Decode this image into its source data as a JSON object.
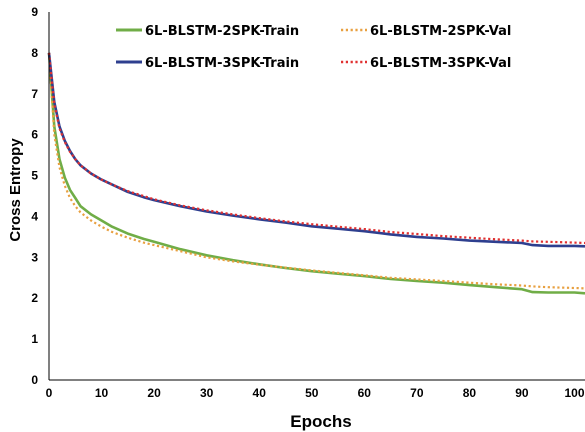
{
  "chart_data": {
    "type": "line",
    "xlabel": "Epochs",
    "ylabel": "Cross Entropy",
    "xlim": [
      0,
      102
    ],
    "ylim": [
      0,
      9
    ],
    "xticks": [
      0,
      10,
      20,
      30,
      40,
      50,
      60,
      70,
      80,
      90,
      100
    ],
    "yticks": [
      0,
      1,
      2,
      3,
      4,
      5,
      6,
      7,
      8,
      9
    ],
    "grid": false,
    "legend_position": "top",
    "x": [
      0,
      1,
      2,
      3,
      4,
      5,
      6,
      8,
      10,
      12,
      15,
      18,
      20,
      25,
      30,
      35,
      40,
      45,
      50,
      55,
      60,
      65,
      70,
      75,
      80,
      85,
      90,
      92,
      95,
      100,
      102
    ],
    "series": [
      {
        "name": "6L-BLSTM-2SPK-Train",
        "color": "#70ad47",
        "dash": "solid",
        "values": [
          8.0,
          6.2,
          5.4,
          4.95,
          4.65,
          4.45,
          4.25,
          4.05,
          3.9,
          3.75,
          3.58,
          3.45,
          3.38,
          3.2,
          3.05,
          2.93,
          2.83,
          2.74,
          2.66,
          2.6,
          2.54,
          2.47,
          2.42,
          2.38,
          2.32,
          2.27,
          2.22,
          2.15,
          2.14,
          2.14,
          2.12
        ]
      },
      {
        "name": "6L-BLSTM-2SPK-Val",
        "color": "#e8a040",
        "dash": "dotted",
        "values": [
          8.0,
          6.0,
          5.2,
          4.75,
          4.45,
          4.25,
          4.1,
          3.9,
          3.75,
          3.62,
          3.48,
          3.36,
          3.3,
          3.15,
          3.0,
          2.9,
          2.82,
          2.75,
          2.68,
          2.62,
          2.56,
          2.5,
          2.46,
          2.42,
          2.38,
          2.34,
          2.31,
          2.29,
          2.27,
          2.25,
          2.24
        ]
      },
      {
        "name": "6L-BLSTM-3SPK-Train",
        "color": "#2e3f8f",
        "dash": "solid",
        "values": [
          8.0,
          6.8,
          6.2,
          5.85,
          5.6,
          5.4,
          5.25,
          5.05,
          4.9,
          4.78,
          4.6,
          4.47,
          4.4,
          4.25,
          4.12,
          4.02,
          3.93,
          3.85,
          3.76,
          3.7,
          3.64,
          3.56,
          3.5,
          3.46,
          3.41,
          3.38,
          3.35,
          3.3,
          3.28,
          3.28,
          3.27
        ]
      },
      {
        "name": "6L-BLSTM-3SPK-Val",
        "color": "#e03030",
        "dash": "dotted",
        "values": [
          8.0,
          6.75,
          6.15,
          5.82,
          5.58,
          5.4,
          5.25,
          5.05,
          4.9,
          4.78,
          4.62,
          4.5,
          4.42,
          4.27,
          4.15,
          4.05,
          3.96,
          3.88,
          3.81,
          3.75,
          3.69,
          3.62,
          3.57,
          3.52,
          3.48,
          3.44,
          3.41,
          3.39,
          3.38,
          3.36,
          3.35
        ]
      }
    ]
  }
}
